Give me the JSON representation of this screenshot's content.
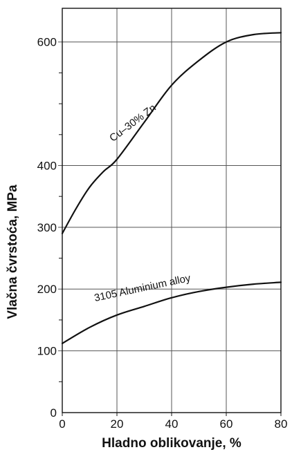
{
  "chart_data": {
    "type": "line",
    "title": "",
    "xlabel": "Hladno oblikovanje, %",
    "ylabel": "Vlačna čvrstoća, MPa",
    "xlim": [
      0,
      80
    ],
    "x_ticks": [
      0,
      20,
      40,
      60,
      80
    ],
    "y_ticks": [
      {
        "value": 0,
        "label": "0"
      },
      {
        "value": 100,
        "label": "100"
      },
      {
        "value": 200,
        "label": "200"
      },
      {
        "value": 300,
        "label": "300"
      },
      {
        "value": 400,
        "label": "400"
      },
      {
        "value": 600,
        "label": "600"
      }
    ],
    "y_gridlines": [
      100,
      200,
      300,
      400,
      600
    ],
    "y_minor_ticks": [
      50,
      150,
      250,
      350,
      450,
      500,
      550
    ],
    "grid": true,
    "line_color": "#111111",
    "series": [
      {
        "name": "Cu–30% Zn",
        "x": [
          0,
          5,
          10,
          15,
          20,
          30,
          40,
          50,
          60,
          70,
          80
        ],
        "y": [
          290,
          330,
          365,
          390,
          410,
          470,
          530,
          570,
          600,
          612,
          615
        ]
      },
      {
        "name": "3105 Aluminium alloy",
        "x": [
          0,
          10,
          20,
          30,
          40,
          50,
          60,
          70,
          80
        ],
        "y": [
          112,
          138,
          158,
          172,
          186,
          196,
          203,
          208,
          211
        ]
      }
    ]
  }
}
